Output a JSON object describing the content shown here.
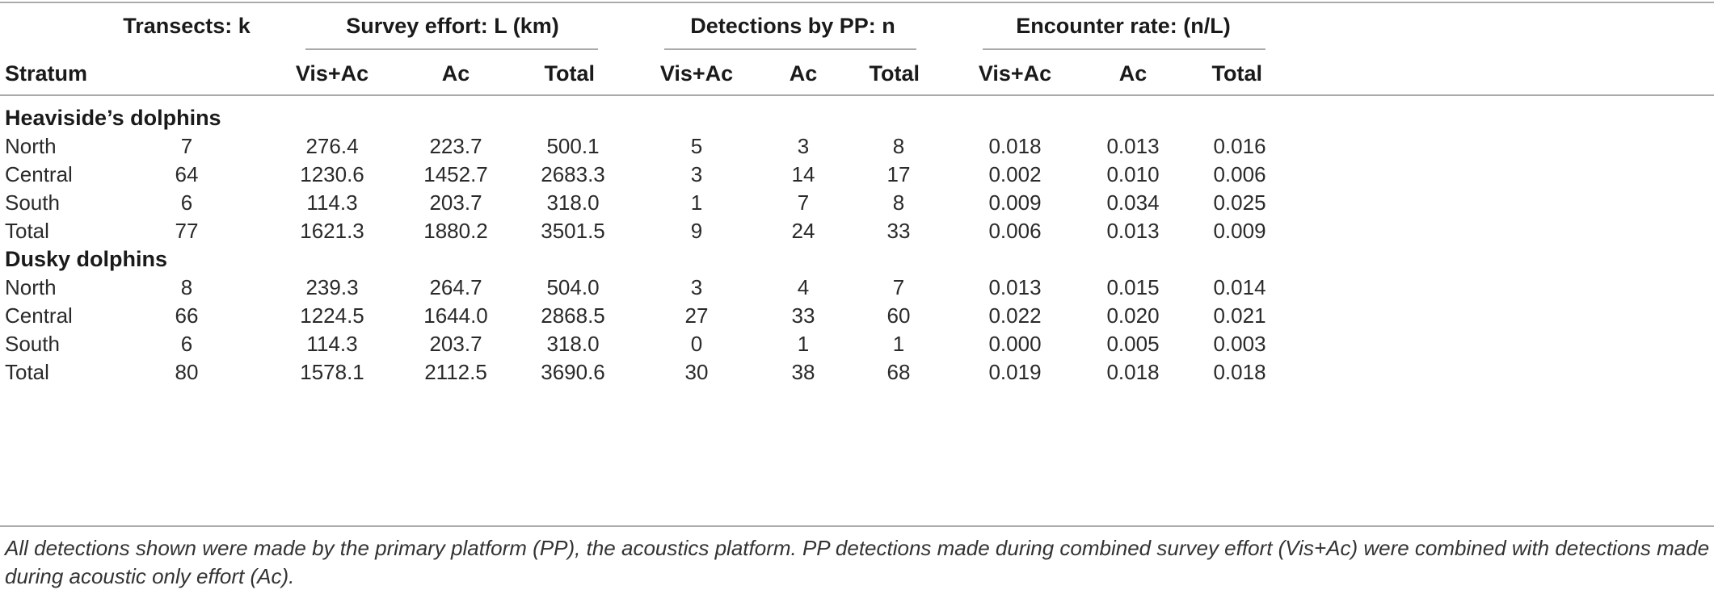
{
  "header": {
    "transects": "Transects: k",
    "effort": "Survey effort: L (km)",
    "detections": "Detections by PP: n",
    "encounter": "Encounter rate: (n/L)",
    "stratum": "Stratum",
    "sub": [
      "Vis+Ac",
      "Ac",
      "Total",
      "Vis+Ac",
      "Ac",
      "Total",
      "Vis+Ac",
      "Ac",
      "Total"
    ]
  },
  "sections": [
    {
      "title": "Heaviside’s dolphins",
      "rows": [
        {
          "stratum": "North",
          "k": "7",
          "vals": [
            "276.4",
            "223.7",
            "500.1",
            "5",
            "3",
            "8",
            "0.018",
            "0.013",
            "0.016"
          ]
        },
        {
          "stratum": "Central",
          "k": "64",
          "vals": [
            "1230.6",
            "1452.7",
            "2683.3",
            "3",
            "14",
            "17",
            "0.002",
            "0.010",
            "0.006"
          ]
        },
        {
          "stratum": "South",
          "k": "6",
          "vals": [
            "114.3",
            "203.7",
            "318.0",
            "1",
            "7",
            "8",
            "0.009",
            "0.034",
            "0.025"
          ]
        },
        {
          "stratum": "Total",
          "k": "77",
          "vals": [
            "1621.3",
            "1880.2",
            "3501.5",
            "9",
            "24",
            "33",
            "0.006",
            "0.013",
            "0.009"
          ]
        }
      ]
    },
    {
      "title": "Dusky dolphins",
      "rows": [
        {
          "stratum": "North",
          "k": "8",
          "vals": [
            "239.3",
            "264.7",
            "504.0",
            "3",
            "4",
            "7",
            "0.013",
            "0.015",
            "0.014"
          ]
        },
        {
          "stratum": "Central",
          "k": "66",
          "vals": [
            "1224.5",
            "1644.0",
            "2868.5",
            "27",
            "33",
            "60",
            "0.022",
            "0.020",
            "0.021"
          ]
        },
        {
          "stratum": "South",
          "k": "6",
          "vals": [
            "114.3",
            "203.7",
            "318.0",
            "0",
            "1",
            "1",
            "0.000",
            "0.005",
            "0.003"
          ]
        },
        {
          "stratum": "Total",
          "k": "80",
          "vals": [
            "1578.1",
            "2112.5",
            "3690.6",
            "30",
            "38",
            "68",
            "0.019",
            "0.018",
            "0.018"
          ]
        }
      ]
    }
  ],
  "footnote": "All detections shown were made by the primary platform (PP), the acoustics platform. PP detections made during combined survey effort (Vis+Ac) were combined with detections made during acoustic only effort (Ac)."
}
